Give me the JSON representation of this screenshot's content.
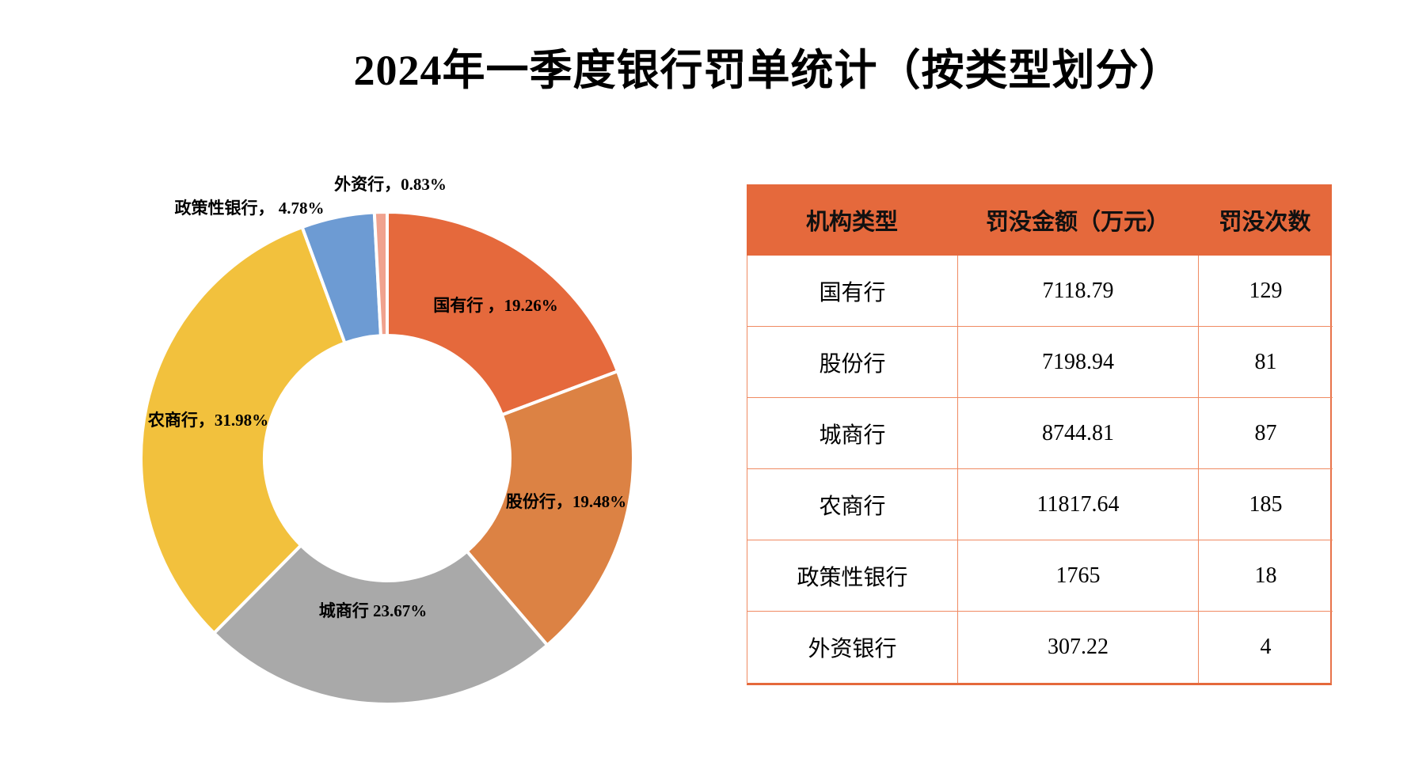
{
  "page": {
    "title": "2024年一季度银行罚单统计（按类型划分）"
  },
  "chart_data": {
    "type": "pie",
    "subtype": "donut",
    "title": "2024年一季度银行罚单统计（按类型划分）",
    "start_angle_deg": 0,
    "direction": "clockwise",
    "inner_radius_ratio": 0.5,
    "legend": "none",
    "segments": [
      {
        "label": "国有行",
        "display": "国有行 ，19.26%",
        "pct": 19.26,
        "color": "#E5693C"
      },
      {
        "label": "股份行",
        "display": "股份行，19.48%",
        "pct": 19.48,
        "color": "#DC8244"
      },
      {
        "label": "城商行",
        "display": "城商行 23.67%",
        "pct": 23.67,
        "color": "#A9A9A9"
      },
      {
        "label": "农商行",
        "display": "农商行，31.98%",
        "pct": 31.98,
        "color": "#F2C13D"
      },
      {
        "label": "政策性银行",
        "display": "政策性银行， 4.78%",
        "pct": 4.78,
        "color": "#6D9BD3"
      },
      {
        "label": "外资行",
        "display": "外资行，0.83%",
        "pct": 0.83,
        "color": "#F0A28E"
      }
    ]
  },
  "table": {
    "headers": [
      "机构类型",
      "罚没金额（万元）",
      "罚没次数"
    ],
    "rows": [
      [
        "国有行",
        "7118.79",
        "129"
      ],
      [
        "股份行",
        "7198.94",
        "81"
      ],
      [
        "城商行",
        "8744.81",
        "87"
      ],
      [
        "农商行",
        "11817.64",
        "185"
      ],
      [
        "政策性银行",
        "1765",
        "18"
      ],
      [
        "外资银行",
        "307.22",
        "4"
      ]
    ],
    "header_bg": "#E5693C",
    "border_color": "#F08A62",
    "outer_border_color": "#E8734A"
  }
}
